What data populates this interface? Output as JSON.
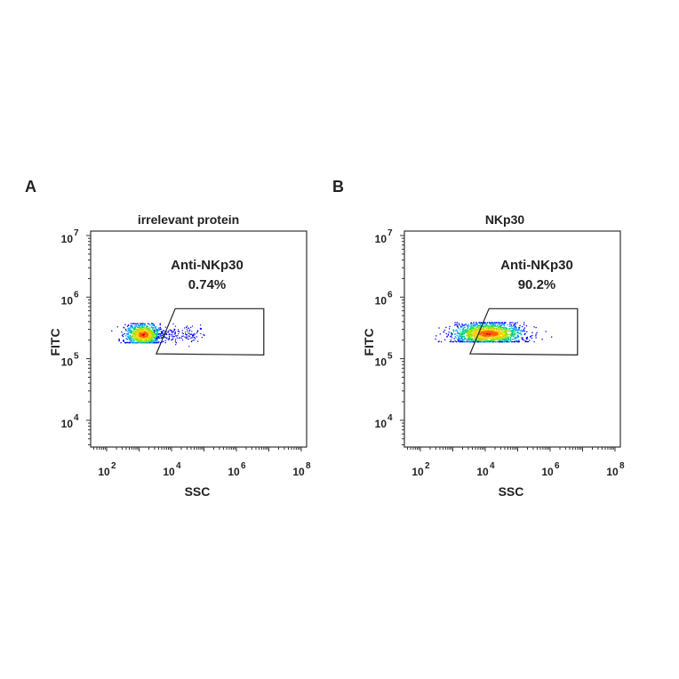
{
  "chart_data": [
    {
      "panel_label": "A",
      "type": "scatter",
      "title": "irrelevant protein",
      "xlabel": "SSC",
      "ylabel": "FITC",
      "x_scale": "log",
      "y_scale": "log",
      "xlim": [
        36,
        120000000
      ],
      "ylim": [
        3500,
        12500000
      ],
      "x_ticks": [
        {
          "base": "10",
          "exp": "2",
          "value": 100
        },
        {
          "base": "10",
          "exp": "4",
          "value": 10000
        },
        {
          "base": "10",
          "exp": "6",
          "value": 1000000
        },
        {
          "base": "10",
          "exp": "8",
          "value": 100000000
        }
      ],
      "y_ticks": [
        {
          "base": "10",
          "exp": "4",
          "value": 10000
        },
        {
          "base": "10",
          "exp": "5",
          "value": 100000
        },
        {
          "base": "10",
          "exp": "6",
          "value": 1000000
        },
        {
          "base": "10",
          "exp": "7",
          "value": 10000000
        }
      ],
      "gate": {
        "name": "Anti-NKp30",
        "percent": "0.74%",
        "vertices": [
          [
            3400,
            120000
          ],
          [
            13000,
            650000
          ],
          [
            7000000,
            650000
          ],
          [
            7000000,
            115000
          ]
        ]
      },
      "population": {
        "center": [
          1300,
          250000
        ],
        "x_log_sd": 0.28,
        "y_log_sd": 0.09,
        "tail_to_x": 100000
      }
    },
    {
      "panel_label": "B",
      "type": "scatter",
      "title": "NKp30",
      "xlabel": "SSC",
      "ylabel": "FITC",
      "x_scale": "log",
      "y_scale": "log",
      "xlim": [
        36,
        120000000
      ],
      "ylim": [
        3500,
        12500000
      ],
      "x_ticks": [
        {
          "base": "10",
          "exp": "2",
          "value": 100
        },
        {
          "base": "10",
          "exp": "4",
          "value": 10000
        },
        {
          "base": "10",
          "exp": "6",
          "value": 1000000
        },
        {
          "base": "10",
          "exp": "8",
          "value": 100000000
        }
      ],
      "y_ticks": [
        {
          "base": "10",
          "exp": "4",
          "value": 10000
        },
        {
          "base": "10",
          "exp": "5",
          "value": 100000
        },
        {
          "base": "10",
          "exp": "6",
          "value": 1000000
        },
        {
          "base": "10",
          "exp": "7",
          "value": 10000000
        }
      ],
      "gate": {
        "name": "Anti-NKp30",
        "percent": "90.2%",
        "vertices": [
          [
            3400,
            120000
          ],
          [
            13000,
            650000
          ],
          [
            7000000,
            650000
          ],
          [
            7000000,
            115000
          ]
        ]
      },
      "population": {
        "center": [
          12000,
          260000
        ],
        "x_log_sd": 0.55,
        "y_log_sd": 0.09,
        "tail_to_x": null
      }
    }
  ],
  "colors": {
    "density": [
      "#0000ff",
      "#00a0ff",
      "#00d080",
      "#a0e000",
      "#ffd000",
      "#ff6000",
      "#e00000"
    ],
    "gate": "#222222",
    "text": "#222222"
  }
}
